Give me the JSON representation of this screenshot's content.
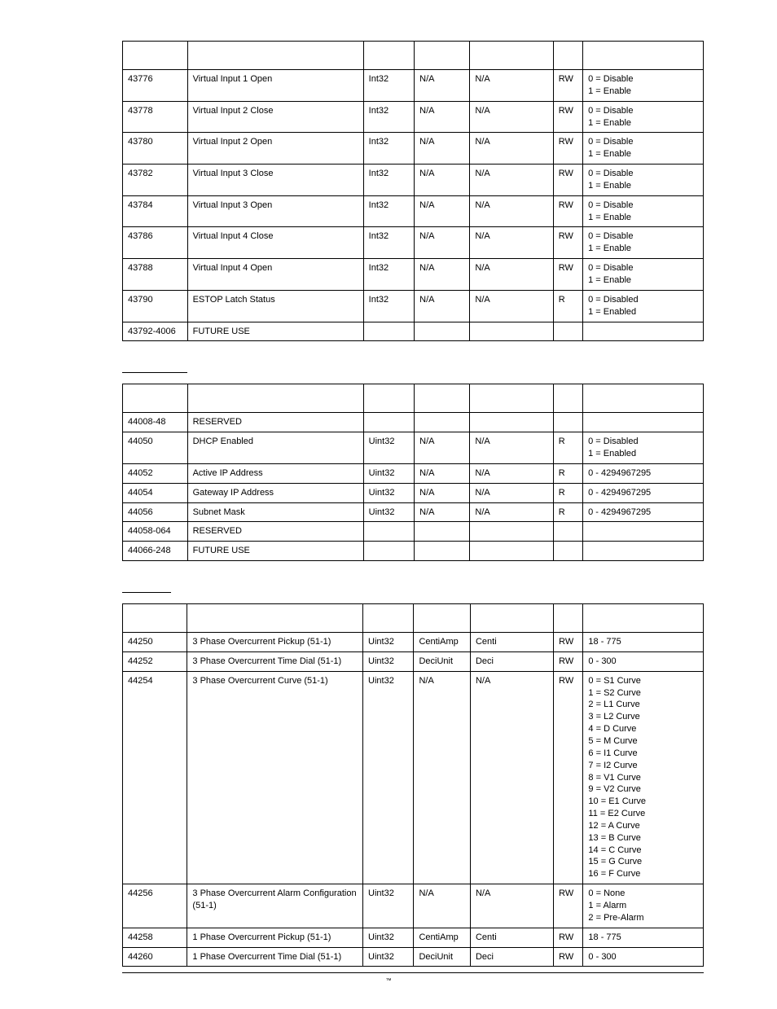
{
  "footer": {
    "trademark": "™"
  },
  "section2_label": " ",
  "section3_label": " ",
  "table1": {
    "headers": [
      "",
      "",
      "",
      "",
      "",
      "",
      ""
    ],
    "rows": [
      [
        "43776",
        "Virtual Input 1 Open",
        "Int32",
        "N/A",
        "N/A",
        "RW",
        "0 = Disable\n1 = Enable"
      ],
      [
        "43778",
        "Virtual Input 2 Close",
        "Int32",
        "N/A",
        "N/A",
        "RW",
        "0 = Disable\n1 = Enable"
      ],
      [
        "43780",
        "Virtual Input 2 Open",
        "Int32",
        "N/A",
        "N/A",
        "RW",
        "0 = Disable\n1 = Enable"
      ],
      [
        "43782",
        "Virtual Input 3 Close",
        "Int32",
        "N/A",
        "N/A",
        "RW",
        "0 = Disable\n1 = Enable"
      ],
      [
        "43784",
        "Virtual Input 3 Open",
        "Int32",
        "N/A",
        "N/A",
        "RW",
        "0 = Disable\n1 = Enable"
      ],
      [
        "43786",
        "Virtual Input 4 Close",
        "Int32",
        "N/A",
        "N/A",
        "RW",
        "0 = Disable\n1 = Enable"
      ],
      [
        "43788",
        "Virtual Input 4 Open",
        "Int32",
        "N/A",
        "N/A",
        "RW",
        "0 = Disable\n1 = Enable"
      ],
      [
        "43790",
        "ESTOP Latch Status",
        "Int32",
        "N/A",
        "N/A",
        "R",
        "0 = Disabled\n1 = Enabled"
      ],
      [
        "43792-4006",
        "FUTURE USE",
        "",
        "",
        "",
        "",
        ""
      ]
    ]
  },
  "table2": {
    "headers": [
      "",
      "",
      "",
      "",
      "",
      "",
      ""
    ],
    "rows": [
      [
        "44008-48",
        "RESERVED",
        "",
        "",
        "",
        "",
        ""
      ],
      [
        "44050",
        "DHCP Enabled",
        "Uint32",
        "N/A",
        "N/A",
        "R",
        "0 = Disabled\n1 = Enabled"
      ],
      [
        "44052",
        "Active IP Address",
        "Uint32",
        "N/A",
        "N/A",
        "R",
        "0 - 4294967295"
      ],
      [
        "44054",
        "Gateway IP Address",
        "Uint32",
        "N/A",
        "N/A",
        "R",
        "0 - 4294967295"
      ],
      [
        "44056",
        "Subnet Mask",
        "Uint32",
        "N/A",
        "N/A",
        "R",
        "0 - 4294967295"
      ],
      [
        "44058-064",
        "RESERVED",
        "",
        "",
        "",
        "",
        ""
      ],
      [
        "44066-248",
        "FUTURE USE",
        "",
        "",
        "",
        "",
        ""
      ]
    ]
  },
  "table3": {
    "headers": [
      "",
      "",
      "",
      "",
      "",
      "",
      ""
    ],
    "rows": [
      [
        "44250",
        "3 Phase Overcurrent Pickup (51-1)",
        "Uint32",
        "CentiAmp",
        "Centi",
        "RW",
        "18 - 775"
      ],
      [
        "44252",
        "3 Phase Overcurrent Time Dial (51-1)",
        "Uint32",
        "DeciUnit",
        "Deci",
        "RW",
        "0 - 300"
      ],
      [
        "44254",
        "3 Phase Overcurrent Curve (51-1)",
        "Uint32",
        "N/A",
        "N/A",
        "RW",
        "0 = S1 Curve\n1 = S2 Curve\n2 = L1 Curve\n3 = L2 Curve\n4 = D Curve\n5 = M Curve\n6 = I1 Curve\n7 = I2 Curve\n8 = V1 Curve\n9 = V2 Curve\n10 = E1 Curve\n11 = E2 Curve\n12 = A Curve\n13 = B Curve\n14 = C Curve\n15 = G Curve\n16 = F Curve"
      ],
      [
        "44256",
        "3 Phase Overcurrent Alarm Configuration (51-1)",
        "Uint32",
        "N/A",
        "N/A",
        "RW",
        "0 = None\n1 = Alarm\n2 = Pre-Alarm"
      ],
      [
        "44258",
        "1 Phase Overcurrent Pickup (51-1)",
        "Uint32",
        "CentiAmp",
        "Centi",
        "RW",
        "18 - 775"
      ],
      [
        "44260",
        "1 Phase Overcurrent Time Dial (51-1)",
        "Uint32",
        "DeciUnit",
        "Deci",
        "RW",
        "0 - 300"
      ]
    ]
  }
}
